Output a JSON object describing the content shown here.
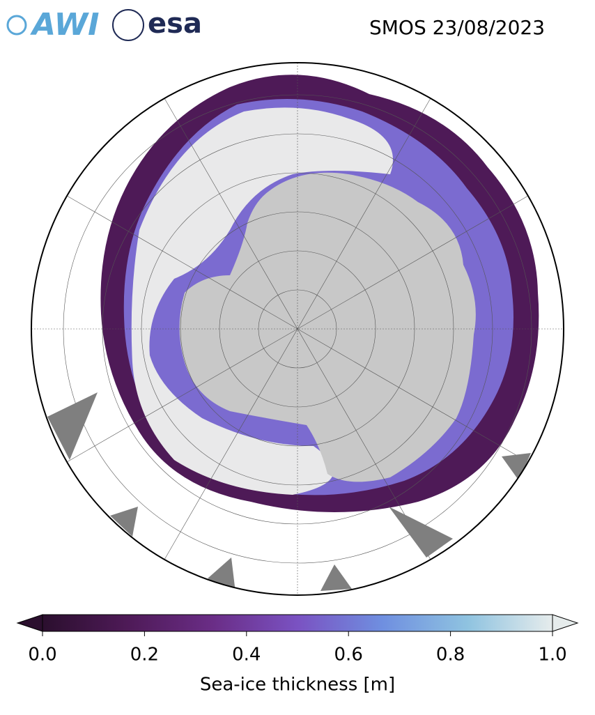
{
  "header": {
    "logos": [
      "AWI",
      "esa"
    ],
    "title": "SMOS 23/08/2023"
  },
  "colorbar": {
    "label": "Sea-ice thickness [m]",
    "lim": [
      0,
      1
    ],
    "ticks": [
      {
        "value": 0,
        "label": "0.0"
      },
      0.2,
      0.4,
      0.6,
      0.8,
      {
        "value": 1,
        "label": "1.0"
      }
    ],
    "colors": [
      "#2b0f2e",
      "#4e1a57",
      "#6a2d86",
      "#7a52c2",
      "#6f8fe0",
      "#8fc3e0",
      "#e6ecec"
    ]
  }
}
